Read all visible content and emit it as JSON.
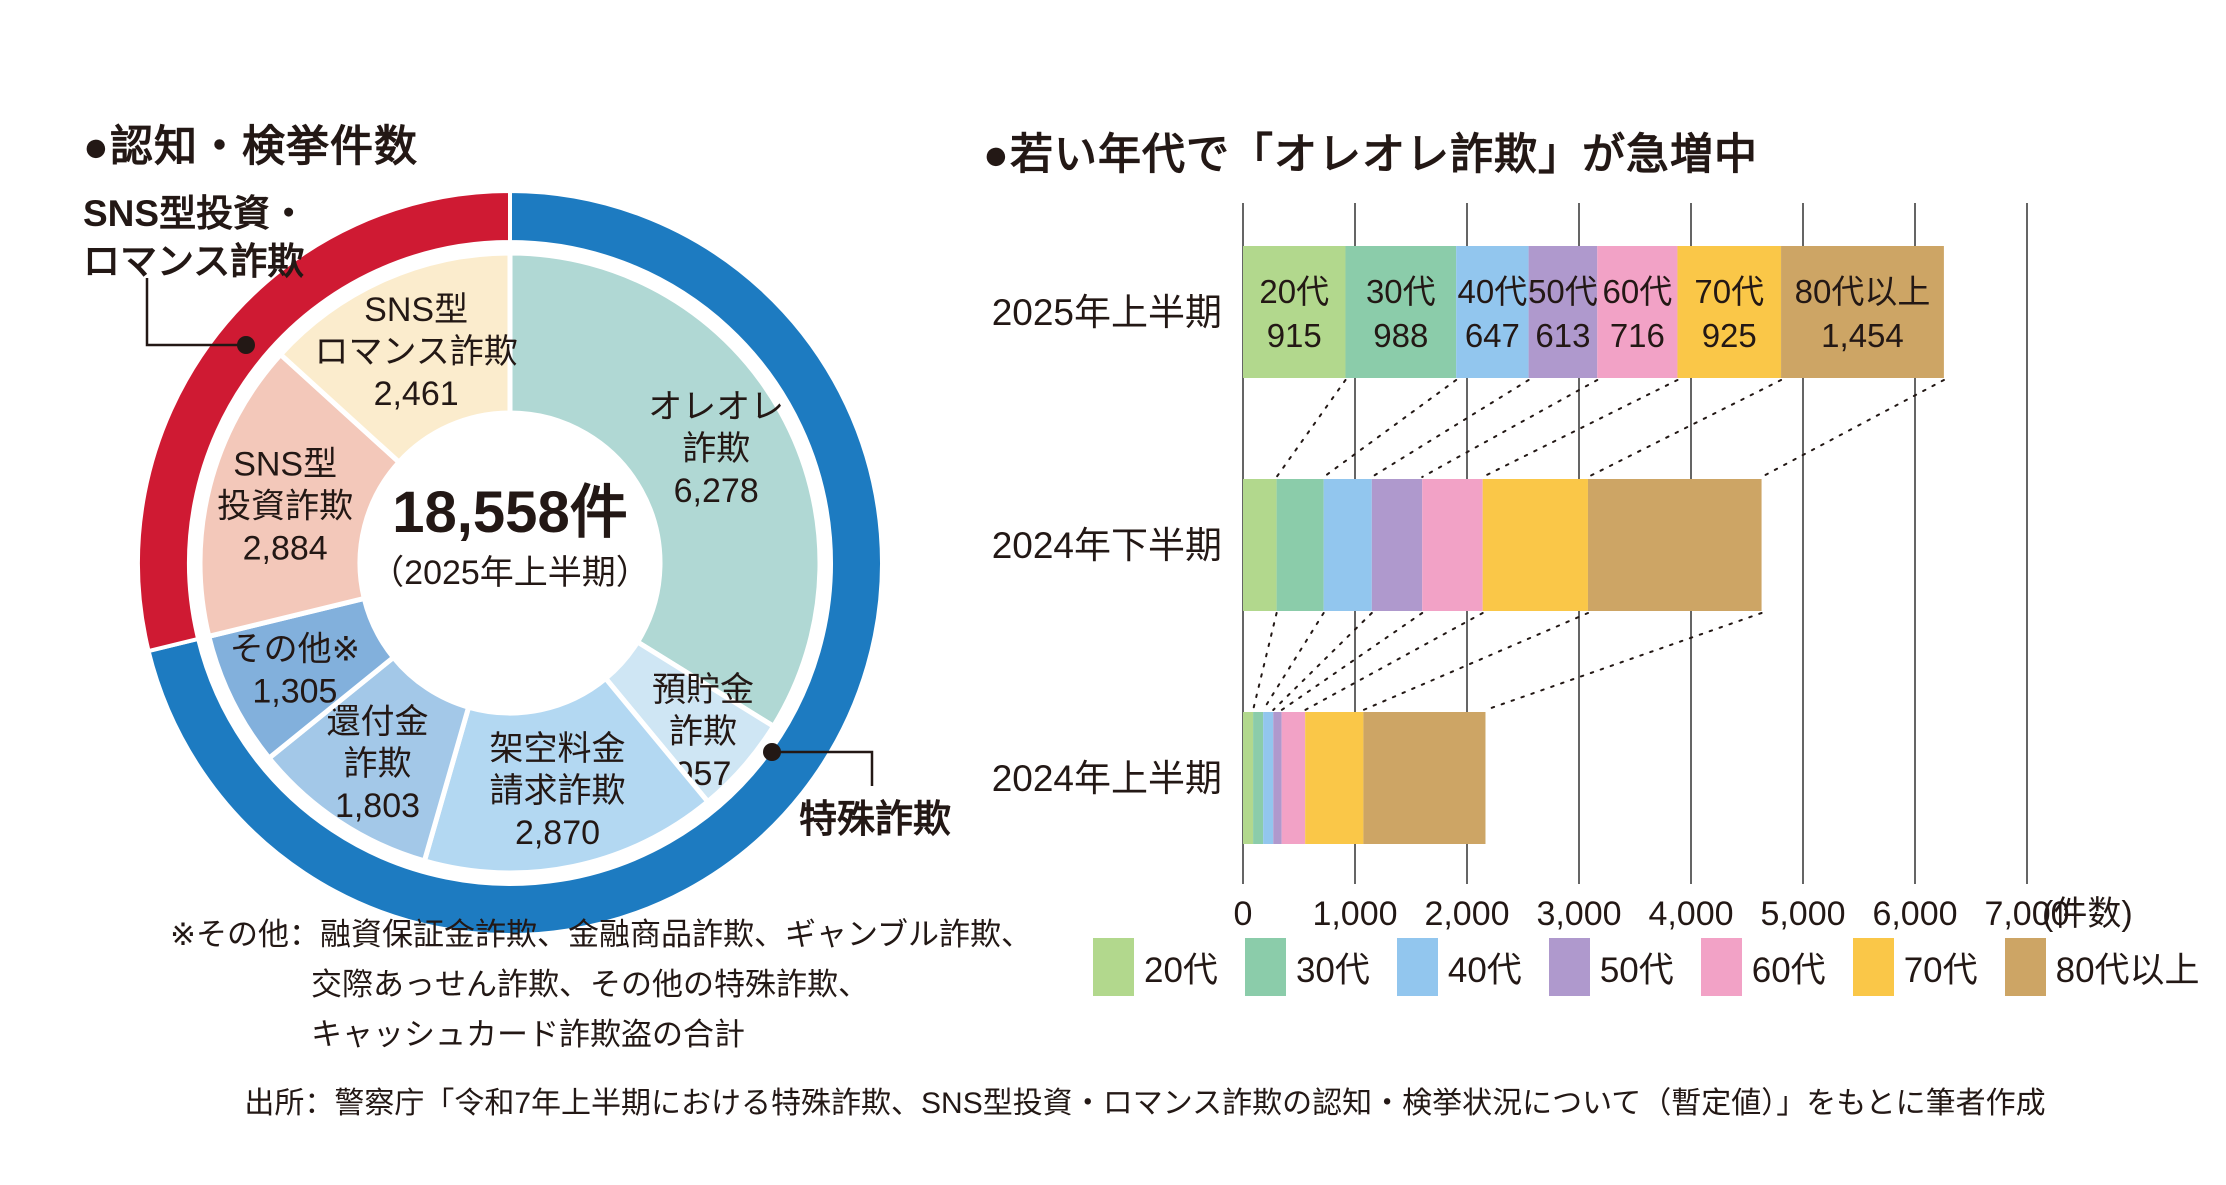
{
  "source": "出所：警察庁「令和7年上半期における特殊詐欺、SNS型投資・ロマンス詐欺の認知・検挙状況について（暫定値）」をもとに筆者作成",
  "left_chart": {
    "title": "●認知・検挙件数",
    "center_total": "18,558件",
    "center_period": "（2025年上半期）",
    "sns_annotation_lines": [
      "SNS型投資・",
      "ロマンス詐欺"
    ],
    "special_label": "特殊詐欺",
    "footnote_lines": [
      "※その他：融資保証金詐欺、金融商品詐欺、ギャンブル詐欺、",
      "交際あっせん詐欺、その他の特殊詐欺、",
      "キャッシュカード詐欺盗の合計"
    ]
  },
  "right_chart": {
    "title": "●若い年代で「オレオレ詐欺」が急増中",
    "tick_labels": [
      "0",
      "1,000",
      "2,000",
      "3,000",
      "4,000",
      "5,000",
      "6,000",
      "7,000"
    ],
    "axis_unit": "(件数)"
  },
  "chart_data": [
    {
      "type": "pie",
      "title": "認知・検挙件数",
      "total": 18558,
      "total_label": "18,558件",
      "period": "2025年上半期",
      "segments": [
        {
          "id": "oreore",
          "label_lines": [
            "オレオレ",
            "詐欺"
          ],
          "value": 6278,
          "display": "6,278",
          "color": "#b0d8d4"
        },
        {
          "id": "yochokin",
          "label_lines": [
            "預貯金",
            "詐欺"
          ],
          "value": 957,
          "display": "957",
          "color": "#cfe6f4"
        },
        {
          "id": "kakuu",
          "label_lines": [
            "架空料金",
            "請求詐欺"
          ],
          "value": 2870,
          "display": "2,870",
          "color": "#b3d8f2"
        },
        {
          "id": "kanpu",
          "label_lines": [
            "還付金",
            "詐欺"
          ],
          "value": 1803,
          "display": "1,803",
          "color": "#a3c8e8"
        },
        {
          "id": "sonota",
          "label_lines": [
            "その他※"
          ],
          "value": 1305,
          "display": "1,305",
          "color": "#82b0dc"
        },
        {
          "id": "toushi",
          "label_lines": [
            "SNS型",
            "投資詐欺"
          ],
          "value": 2884,
          "display": "2,884",
          "color": "#f3c8ba"
        },
        {
          "id": "romance",
          "label_lines": [
            "SNS型",
            "ロマンス詐欺"
          ],
          "value": 2461,
          "display": "2,461",
          "color": "#fbeccd"
        }
      ],
      "ring": [
        {
          "id": "special",
          "label": "特殊詐欺",
          "value": 13213,
          "color": "#1d7bc1"
        },
        {
          "id": "sns",
          "label": "SNS型投資・ロマンス詐欺",
          "value": 5345,
          "color": "#cf1a33"
        }
      ]
    },
    {
      "type": "bar",
      "orientation": "horizontal-stacked",
      "title": "若い年代で「オレオレ詐欺」が急増中",
      "categories": [
        "20代",
        "30代",
        "40代",
        "50代",
        "60代",
        "70代",
        "80代以上"
      ],
      "colors": [
        "#b2d88d",
        "#8bccaa",
        "#92c6ee",
        "#af99cd",
        "#f2a2c6",
        "#fac748",
        "#cda565"
      ],
      "rows": [
        {
          "label": "2025年上半期",
          "values": [
            915,
            988,
            647,
            613,
            716,
            925,
            1454
          ],
          "display": [
            "915",
            "988",
            "647",
            "613",
            "716",
            "925",
            "1,454"
          ],
          "show_labels": true
        },
        {
          "label": "2024年下半期",
          "values": [
            300,
            420,
            430,
            450,
            540,
            940,
            1550
          ],
          "display": [],
          "show_labels": false
        },
        {
          "label": "2024年上半期",
          "values": [
            90,
            90,
            90,
            75,
            210,
            520,
            1090
          ],
          "display": [],
          "show_labels": false
        }
      ],
      "xlim": [
        0,
        7000
      ],
      "xticks": [
        0,
        1000,
        2000,
        3000,
        4000,
        5000,
        6000,
        7000
      ],
      "xlabel": "(件数)",
      "grid": true,
      "legend_position": "bottom"
    }
  ]
}
